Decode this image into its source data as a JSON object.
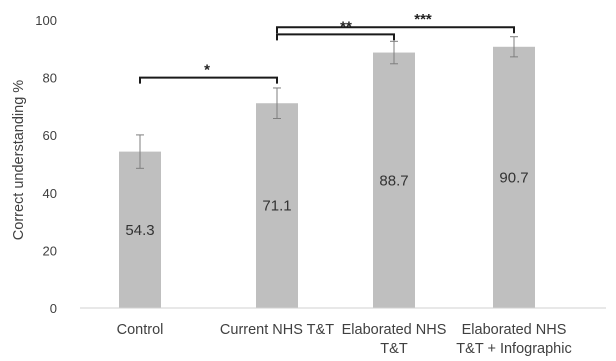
{
  "chart_data": {
    "type": "bar",
    "title": "",
    "xlabel": "",
    "ylabel": "Correct understanding %",
    "ylim": [
      0,
      100
    ],
    "yticks": [
      0,
      20,
      40,
      60,
      80,
      100
    ],
    "grid": false,
    "categories": [
      [
        "Control"
      ],
      [
        "Current NHS T&T"
      ],
      [
        "Elaborated NHS",
        "T&T"
      ],
      [
        "Elaborated NHS",
        "T&T + Infographic"
      ]
    ],
    "values": [
      54.3,
      71.1,
      88.7,
      90.7
    ],
    "data_labels": [
      "54.3",
      "71.1",
      "88.7",
      "90.7"
    ],
    "error_bars": [
      {
        "low": 48.5,
        "high": 60.1
      },
      {
        "low": 65.8,
        "high": 76.4
      },
      {
        "low": 84.8,
        "high": 92.6
      },
      {
        "low": 87.2,
        "high": 94.2
      }
    ],
    "bar_color": "#bfbfbf",
    "error_color": "#7f7f7f",
    "significance": [
      {
        "from": 0,
        "to": 1,
        "y": 80,
        "label": "*"
      },
      {
        "from": 1,
        "to": 2,
        "y": 95,
        "label": "**"
      },
      {
        "from": 1,
        "to": 3,
        "y": 97.5,
        "label": "***"
      }
    ]
  }
}
